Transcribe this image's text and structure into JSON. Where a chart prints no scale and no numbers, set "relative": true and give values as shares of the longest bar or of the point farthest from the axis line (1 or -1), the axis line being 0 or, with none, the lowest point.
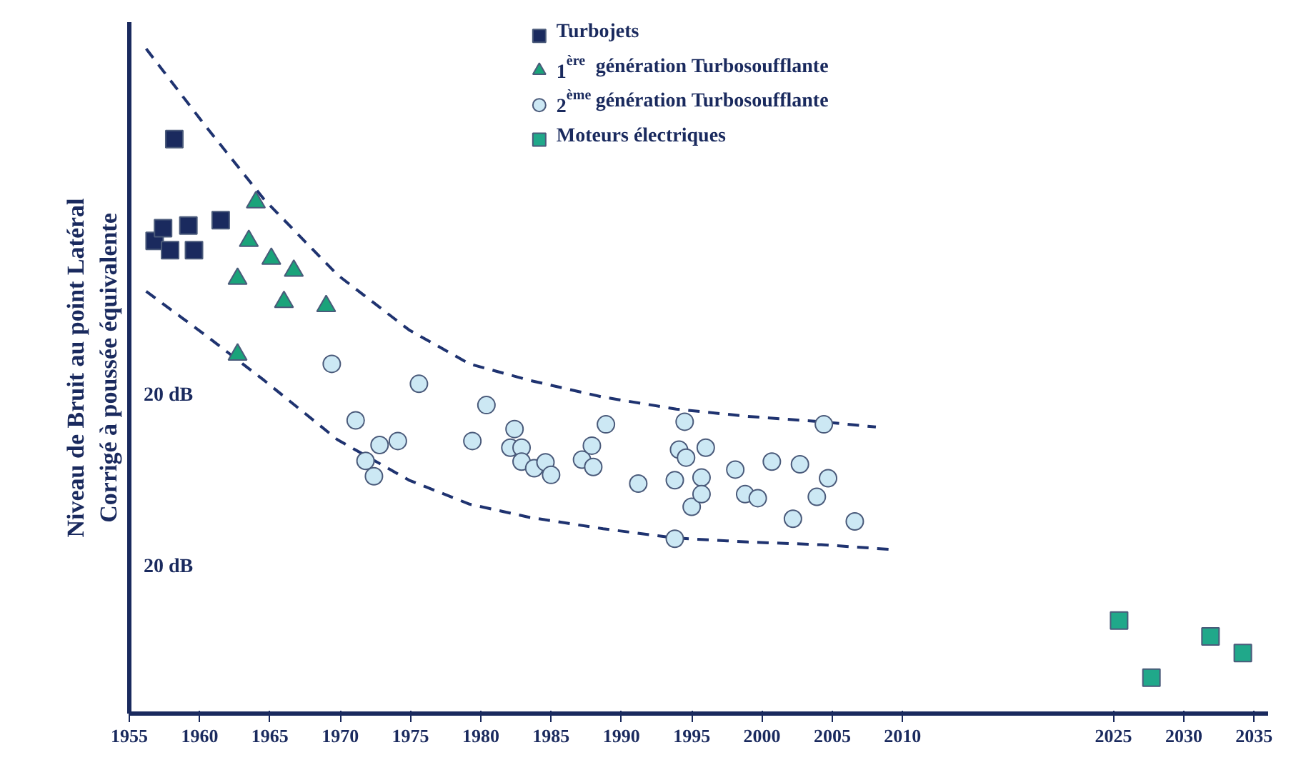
{
  "chart_data": {
    "type": "scatter",
    "relative": true,
    "ylabel": "Niveau de Bruit au point Latéral\nCorrigé à poussée équivalente",
    "xlim": [
      1955,
      2036
    ],
    "xticks": [
      1955,
      1960,
      1965,
      1970,
      1975,
      1980,
      1985,
      1990,
      1995,
      2000,
      2005,
      2010,
      2025,
      2030,
      2035
    ],
    "grid": false,
    "legend": "top",
    "annotations": [
      "20 dB",
      "20 dB"
    ],
    "series": [
      {
        "type": "line",
        "line_style": "dashed",
        "marker": "none",
        "color": "#1f3370",
        "x": [
          1956.2,
          1960.3,
          1964.6,
          1969.8,
          1974.9,
          1979.2,
          1983.5,
          1988.7,
          1993.9,
          1999.0,
          2004.2,
          2008.1
        ],
        "values": [
          1.0,
          0.887,
          0.773,
          0.66,
          0.577,
          0.526,
          0.501,
          0.476,
          0.458,
          0.447,
          0.439,
          0.431
        ]
      },
      {
        "type": "line",
        "line_style": "dashed",
        "marker": "none",
        "color": "#1f3370",
        "x": [
          1956.2,
          1960.3,
          1964.6,
          1969.8,
          1974.9,
          1979.2,
          1983.5,
          1988.7,
          1993.9,
          1999.0,
          2004.2,
          2009.1
        ],
        "values": [
          0.635,
          0.571,
          0.501,
          0.412,
          0.351,
          0.315,
          0.295,
          0.278,
          0.264,
          0.258,
          0.254,
          0.247
        ]
      },
      {
        "name": "Turbojets",
        "marker": "square",
        "color": "#1a2a5e",
        "x": [
          1958.2,
          1956.8,
          1957.4,
          1957.9,
          1959.2,
          1959.6,
          1961.5
        ],
        "values": [
          0.864,
          0.711,
          0.73,
          0.697,
          0.734,
          0.697,
          0.742
        ]
      },
      {
        "name": "1$^{ère}$ génération Turbosoufflante",
        "marker": "triangle",
        "color": "#1aa37a",
        "x": [
          1964.0,
          1963.5,
          1962.7,
          1965.1,
          1966.7,
          1966.0,
          1969.0,
          1962.7
        ],
        "values": [
          0.769,
          0.711,
          0.654,
          0.684,
          0.666,
          0.619,
          0.613,
          0.54
        ]
      },
      {
        "name": "2$^{ème}$ génération Turbosoufflante",
        "marker": "circle",
        "color": "#cce8f4",
        "x": [
          1969.4,
          1971.1,
          1971.8,
          1972.4,
          1972.8,
          1974.1,
          1975.6,
          1979.4,
          1980.4,
          1982.4,
          1982.1,
          1982.9,
          1982.9,
          1983.8,
          1984.6,
          1985.0,
          1987.2,
          1987.9,
          1988.0,
          1988.9,
          1991.2,
          1993.8,
          1994.1,
          1994.5,
          1994.6,
          1995.0,
          1995.7,
          1995.7,
          1996.0,
          1993.8,
          1998.1,
          1998.8,
          1999.7,
          2000.7,
          2002.7,
          2002.2,
          2003.9,
          2004.4,
          2004.7,
          2006.6
        ],
        "values": [
          0.526,
          0.441,
          0.38,
          0.357,
          0.404,
          0.41,
          0.496,
          0.41,
          0.464,
          0.428,
          0.4,
          0.4,
          0.379,
          0.369,
          0.378,
          0.359,
          0.382,
          0.403,
          0.371,
          0.435,
          0.346,
          0.351,
          0.397,
          0.439,
          0.385,
          0.311,
          0.355,
          0.33,
          0.4,
          0.263,
          0.367,
          0.33,
          0.324,
          0.379,
          0.375,
          0.293,
          0.326,
          0.435,
          0.354,
          0.289
        ]
      },
      {
        "name": "Moteurs électriques",
        "marker": "square",
        "color": "#20a88a",
        "x": [
          2025.4,
          2027.7,
          2031.9,
          2034.2
        ],
        "values": [
          0.14,
          0.054,
          0.116,
          0.091
        ]
      }
    ]
  }
}
